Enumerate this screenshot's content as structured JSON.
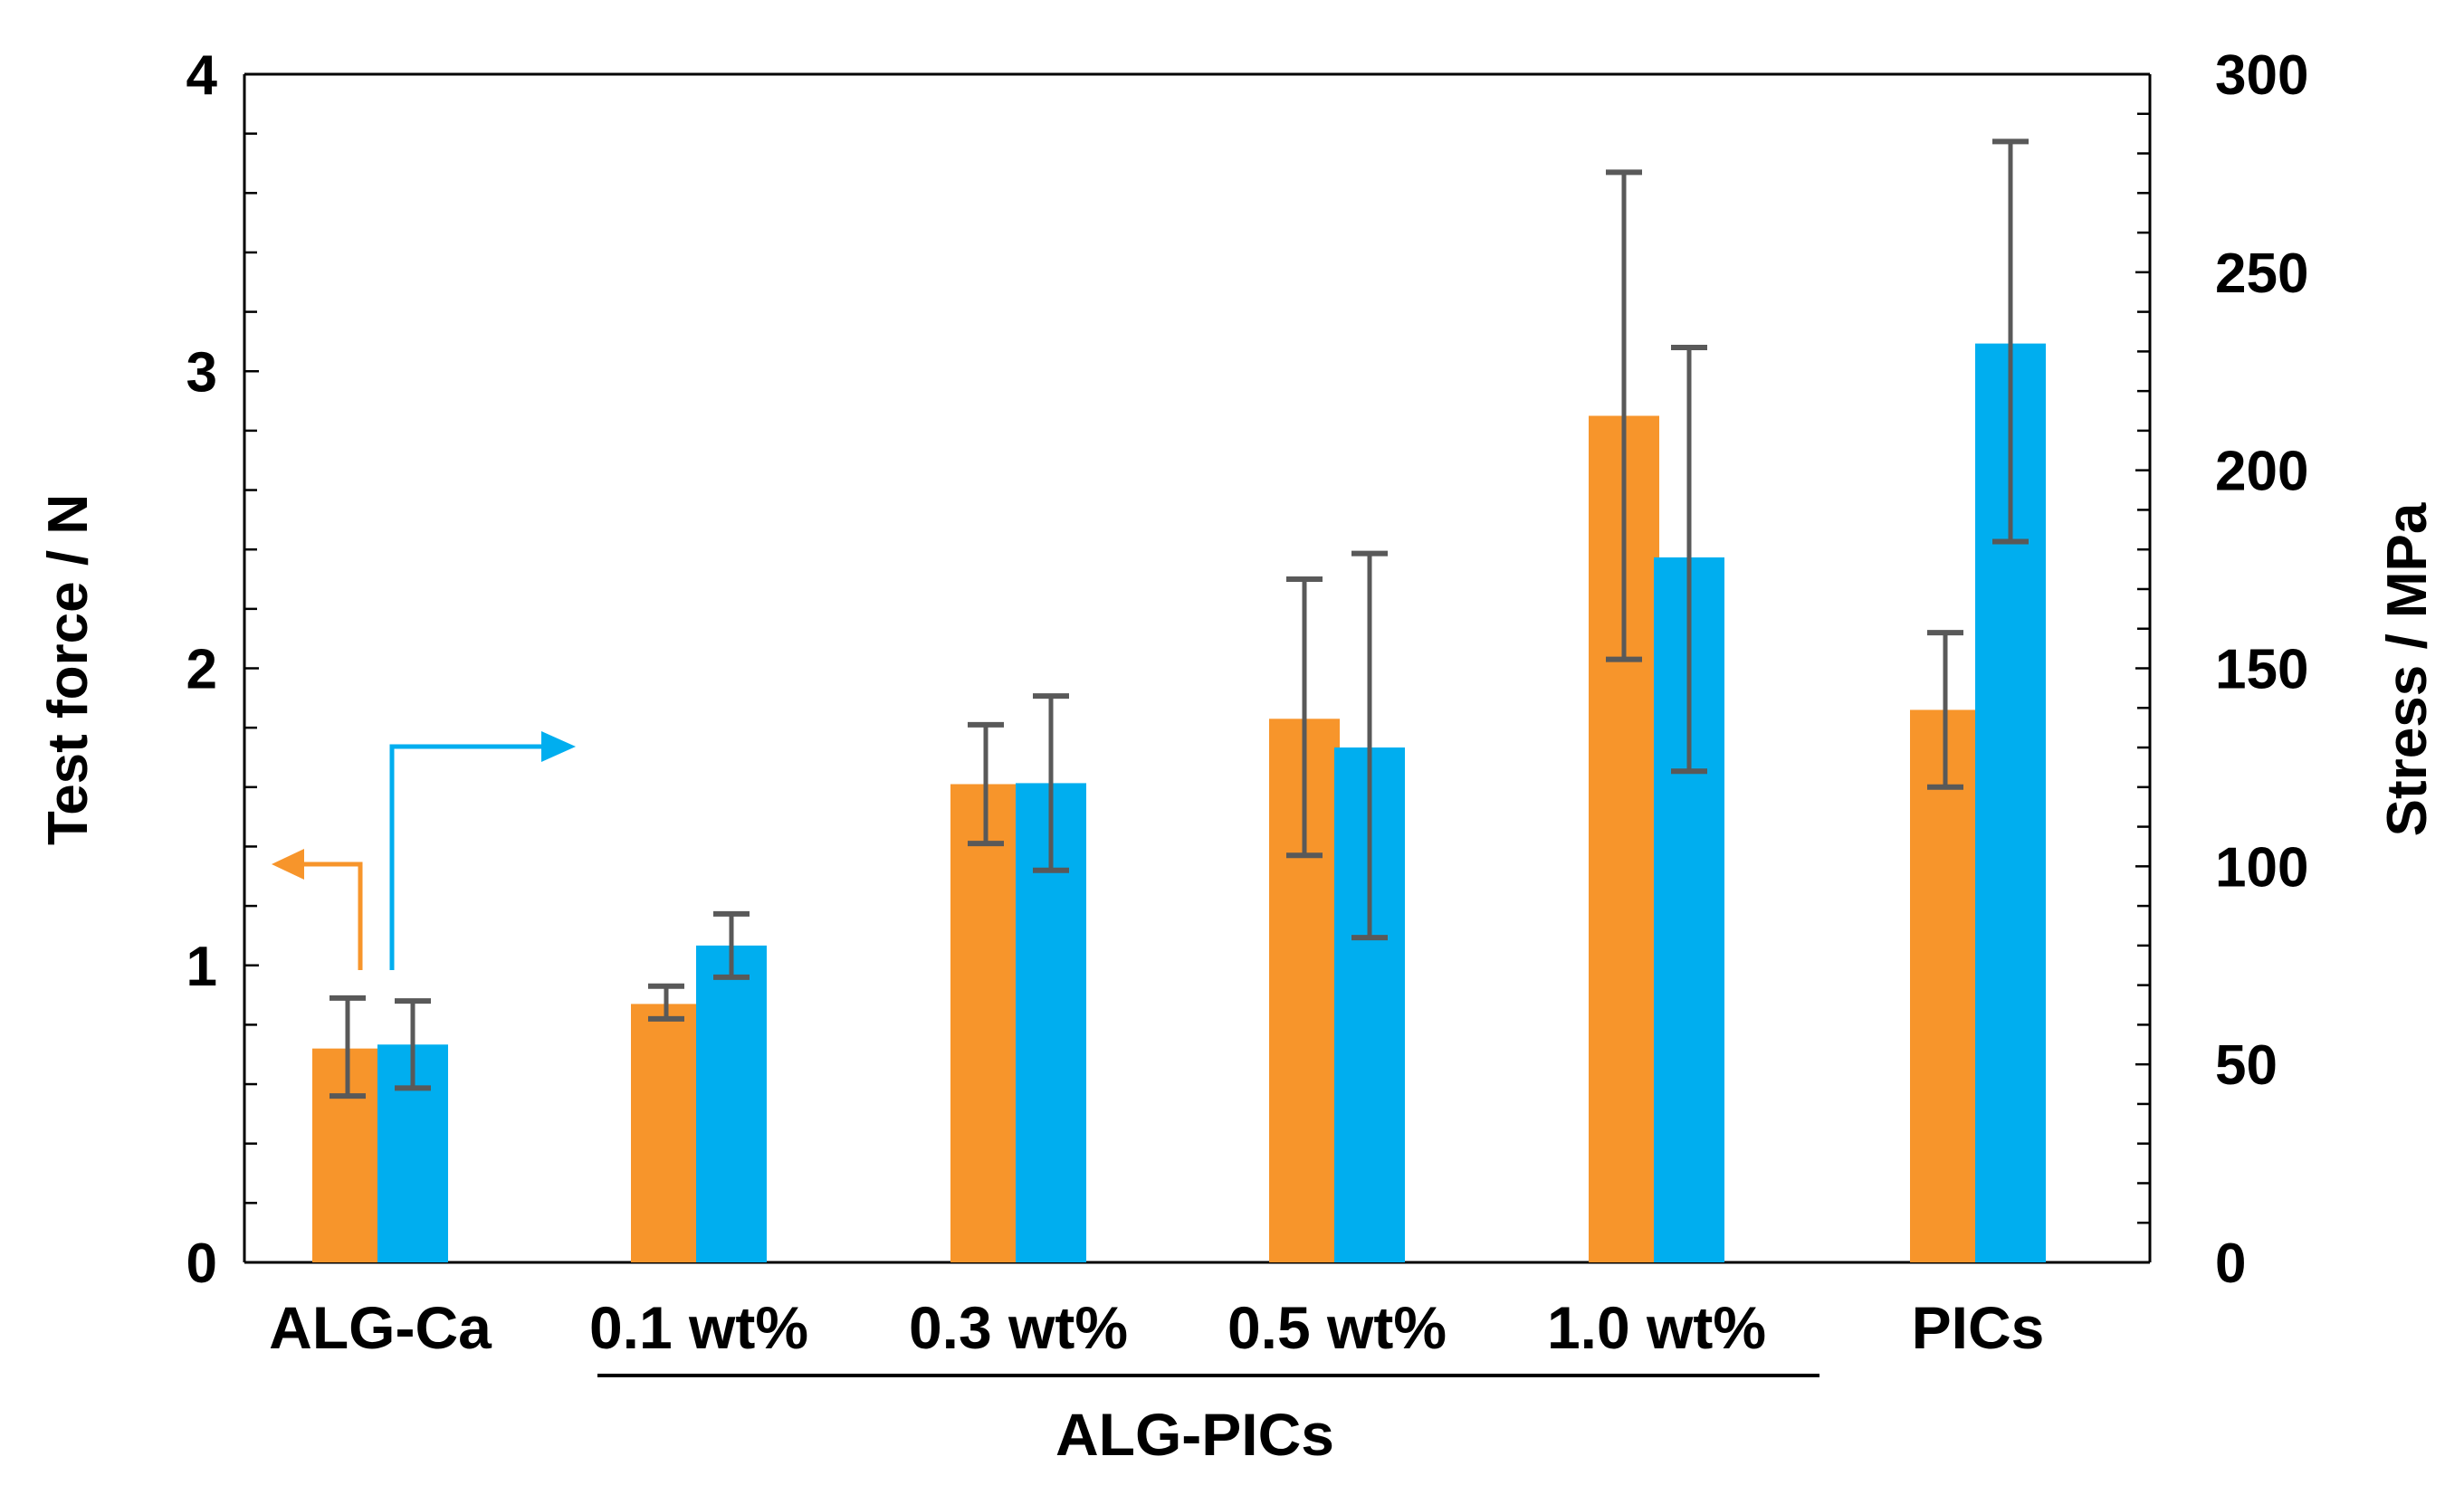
{
  "chart_data": {
    "type": "bar",
    "categories": [
      "ALG-Ca",
      "0.1 wt%",
      "0.3 wt%",
      "0.5 wt%",
      "1.0 wt%",
      "PICs"
    ],
    "group_label": "ALG-PICs",
    "grouped_categories": [
      "0.1 wt%",
      "0.3 wt%",
      "0.5 wt%",
      "1.0 wt%"
    ],
    "series": [
      {
        "name": "Test force",
        "axis": "left",
        "color": "#F7952B",
        "values": [
          0.72,
          0.87,
          1.61,
          1.83,
          2.85,
          1.86
        ],
        "error_low": [
          0.56,
          0.82,
          1.41,
          1.37,
          2.03,
          1.6
        ],
        "error_high": [
          0.89,
          0.93,
          1.81,
          2.3,
          3.67,
          2.12
        ]
      },
      {
        "name": "Stress",
        "axis": "right",
        "color": "#00AEEF",
        "values": [
          55,
          80,
          121,
          130,
          178,
          232
        ],
        "error_low": [
          44,
          72,
          99,
          82,
          124,
          182
        ],
        "error_high": [
          66,
          88,
          143,
          179,
          231,
          283
        ]
      }
    ],
    "left_axis": {
      "label": "Test force / N",
      "min": 0,
      "max": 4,
      "ticks": [
        0,
        1,
        2,
        3,
        4
      ]
    },
    "right_axis": {
      "label": "Stress / MPa",
      "min": 0,
      "max": 300,
      "ticks": [
        0,
        50,
        100,
        150,
        200,
        250,
        300
      ]
    },
    "error_bar_color": "#595959",
    "legend_arrows": [
      {
        "series": "Test force",
        "direction": "left",
        "color": "#F7952B"
      },
      {
        "series": "Stress",
        "direction": "right",
        "color": "#00AEEF"
      }
    ]
  }
}
